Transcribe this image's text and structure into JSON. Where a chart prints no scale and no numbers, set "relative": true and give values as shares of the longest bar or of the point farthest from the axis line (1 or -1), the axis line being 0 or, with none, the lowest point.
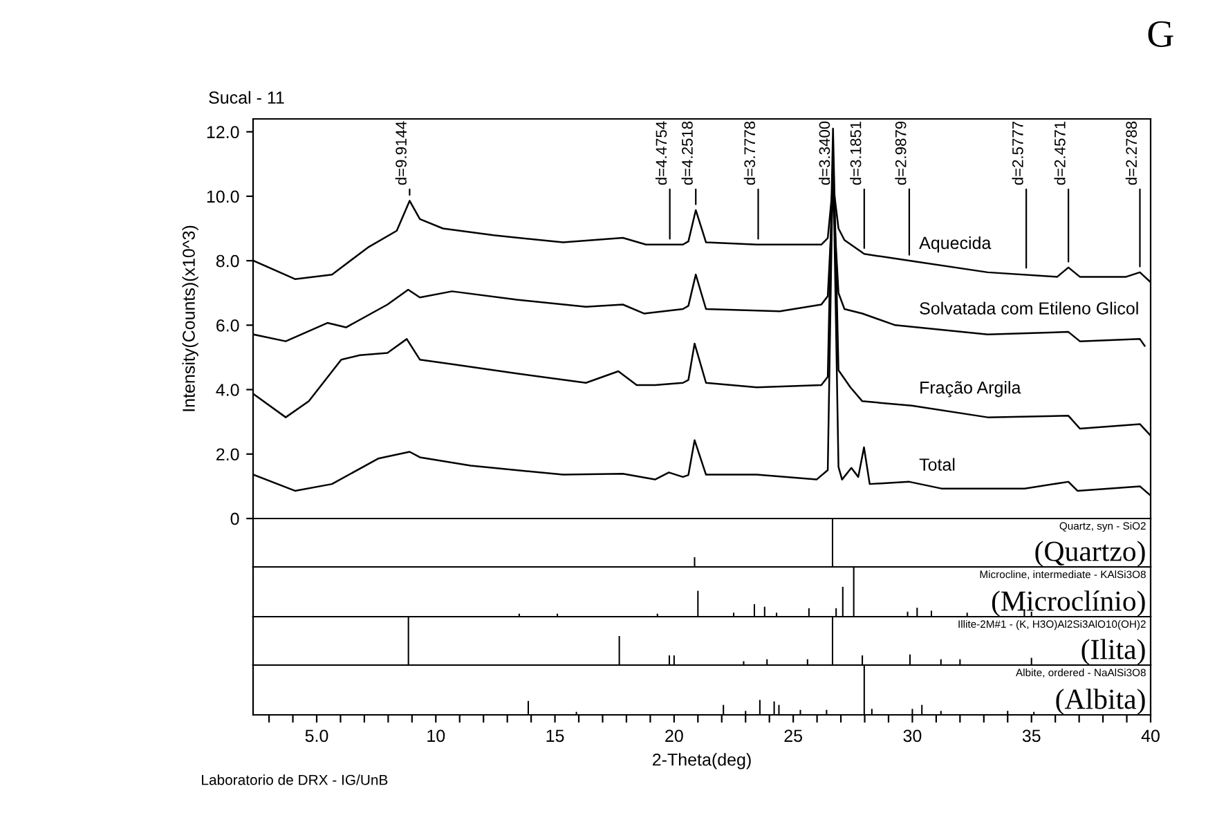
{
  "chart_data": [
    {
      "type": "line",
      "title": "Sucal - 11",
      "ylabel": "Intensity(Counts)(x10^3)",
      "xlim": [
        2.33,
        40.0
      ],
      "ylim": [
        0,
        12.4
      ],
      "yticks": [
        {
          "value": 0,
          "label": "0"
        },
        {
          "value": 2,
          "label": "2.0"
        },
        {
          "value": 4,
          "label": "4.0"
        },
        {
          "value": 6,
          "label": "6.0"
        },
        {
          "value": 8,
          "label": "8.0"
        },
        {
          "value": 10,
          "label": "10.0"
        },
        {
          "value": 12,
          "label": "12.0"
        }
      ],
      "tick_labels": "y",
      "grid": false,
      "legend": false,
      "series": [
        {
          "name": "Aquecida",
          "color": "#000000",
          "x": [
            2.35,
            4.09,
            5.64,
            7.19,
            8.36,
            8.9,
            9.33,
            10.3,
            12.43,
            15.34,
            17.85,
            18.82,
            20.37,
            20.6,
            20.91,
            21.34,
            23.47,
            26.18,
            26.45,
            26.67,
            26.9,
            27.15,
            27.98,
            29.87,
            33.16,
            36.08,
            36.55,
            37.03,
            38.97,
            39.55,
            40.0
          ],
          "values": [
            8.0,
            7.43,
            7.57,
            8.43,
            8.93,
            9.86,
            9.29,
            9.0,
            8.79,
            8.57,
            8.71,
            8.5,
            8.5,
            8.6,
            9.57,
            8.57,
            8.5,
            8.5,
            8.7,
            10.4,
            9.0,
            8.64,
            8.21,
            8.0,
            7.64,
            7.5,
            7.79,
            7.5,
            7.5,
            7.64,
            7.33
          ]
        },
        {
          "name": "Solvatada com Etileno Glicol",
          "color": "#000000",
          "x": [
            2.35,
            3.7,
            5.45,
            6.23,
            7.97,
            8.84,
            9.33,
            10.68,
            13.4,
            16.3,
            17.85,
            18.75,
            20.37,
            20.6,
            20.91,
            21.34,
            24.44,
            26.18,
            26.45,
            26.67,
            26.9,
            27.15,
            27.9,
            29.28,
            33.16,
            36.55,
            37.03,
            39.55,
            39.75
          ],
          "values": [
            5.71,
            5.5,
            6.07,
            5.93,
            6.64,
            7.1,
            6.86,
            7.05,
            6.79,
            6.57,
            6.64,
            6.36,
            6.5,
            6.6,
            7.57,
            6.5,
            6.43,
            6.64,
            6.9,
            10.1,
            7.0,
            6.5,
            6.36,
            6.0,
            5.71,
            5.79,
            5.5,
            5.57,
            5.36
          ]
        },
        {
          "name": "Fração Argila",
          "color": "#000000",
          "x": [
            2.35,
            3.7,
            4.67,
            6.03,
            6.81,
            7.97,
            8.78,
            9.33,
            10.68,
            13.4,
            16.3,
            17.66,
            18.43,
            19.2,
            20.37,
            20.6,
            20.86,
            21.34,
            23.47,
            26.18,
            26.45,
            26.67,
            26.9,
            27.4,
            27.9,
            29.98,
            33.16,
            36.55,
            37.03,
            39.55,
            40.0
          ],
          "values": [
            3.86,
            3.14,
            3.64,
            4.93,
            5.07,
            5.14,
            5.57,
            4.93,
            4.79,
            4.5,
            4.21,
            4.57,
            4.14,
            4.14,
            4.21,
            4.3,
            5.43,
            4.21,
            4.07,
            4.14,
            4.4,
            12.1,
            4.6,
            4.07,
            3.64,
            3.5,
            3.14,
            3.19,
            2.79,
            2.93,
            2.57
          ]
        },
        {
          "name": "Total",
          "color": "#000000",
          "x": [
            2.35,
            4.09,
            5.64,
            7.58,
            8.9,
            9.33,
            11.46,
            15.34,
            17.85,
            19.2,
            19.78,
            20.37,
            20.6,
            20.86,
            21.34,
            23.47,
            25.98,
            26.45,
            26.67,
            26.9,
            27.05,
            27.44,
            27.73,
            27.97,
            28.21,
            29.87,
            31.22,
            34.71,
            36.55,
            36.93,
            39.55,
            40.0
          ],
          "values": [
            1.36,
            0.86,
            1.07,
            1.86,
            2.07,
            1.9,
            1.64,
            1.36,
            1.39,
            1.21,
            1.43,
            1.29,
            1.35,
            2.43,
            1.36,
            1.36,
            1.21,
            1.5,
            11.3,
            1.6,
            1.21,
            1.57,
            1.29,
            2.21,
            1.07,
            1.14,
            0.93,
            0.93,
            1.14,
            0.86,
            1.0,
            0.71
          ]
        }
      ],
      "annotations": [
        {
          "text": "d=9.9144",
          "x": 8.9,
          "y": 9.86
        },
        {
          "text": "d=4.4754",
          "x": 19.82,
          "y": 8.5
        },
        {
          "text": "d=4.2518",
          "x": 20.91,
          "y": 9.57
        },
        {
          "text": "d=3.7778",
          "x": 23.53,
          "y": 8.5
        },
        {
          "text": "d=3.3400",
          "x": 26.67,
          "y": 10.4
        },
        {
          "text": "d=3.1851",
          "x": 27.98,
          "y": 8.21
        },
        {
          "text": "d=2.9879",
          "x": 29.87,
          "y": 8.0
        },
        {
          "text": "d=2.5777",
          "x": 34.78,
          "y": 7.6
        },
        {
          "text": "d=2.4571",
          "x": 36.55,
          "y": 7.79
        },
        {
          "text": "d=2.2788",
          "x": 39.55,
          "y": 7.64
        },
        "G",
        "Laboratorio de DRX - IG/UnB"
      ]
    },
    {
      "type": "bar",
      "title": "Quartz, syn - SiO2",
      "subtitle": "(Quartzo)",
      "relative": true,
      "xlim": [
        2.33,
        40.0
      ],
      "tick_labels": false,
      "color": "#000000",
      "x": [
        20.86,
        26.65
      ],
      "values": [
        0.2,
        1.0
      ]
    },
    {
      "type": "bar",
      "title": "Microcline, intermediate - KAlSi3O8",
      "subtitle": "(Microclínio)",
      "relative": true,
      "xlim": [
        2.33,
        40.0
      ],
      "tick_labels": false,
      "color": "#000000",
      "x": [
        13.5,
        15.1,
        19.3,
        21.0,
        22.5,
        23.37,
        23.8,
        24.3,
        25.66,
        26.8,
        27.08,
        27.54,
        29.8,
        30.2,
        30.8,
        32.3,
        34.7,
        35.0
      ],
      "values": [
        0.06,
        0.06,
        0.06,
        0.52,
        0.08,
        0.25,
        0.2,
        0.08,
        0.17,
        0.17,
        0.6,
        1.0,
        0.1,
        0.18,
        0.12,
        0.08,
        0.15,
        0.1
      ]
    },
    {
      "type": "bar",
      "title": "Illite-2M#1 - (K, H3O)Al2Si3AlO10(OH)2",
      "subtitle": "(Ilita)",
      "relative": true,
      "xlim": [
        2.33,
        40.0
      ],
      "tick_labels": false,
      "color": "#000000",
      "x": [
        8.85,
        17.7,
        19.8,
        20.0,
        22.92,
        23.9,
        25.6,
        26.65,
        27.9,
        29.9,
        31.2,
        32.0,
        35.0
      ],
      "values": [
        1.0,
        0.6,
        0.2,
        0.2,
        0.08,
        0.12,
        0.12,
        1.0,
        0.2,
        0.22,
        0.12,
        0.12,
        0.15
      ]
    },
    {
      "type": "bar",
      "title": "Albite, ordered - NaAlSi3O8",
      "subtitle": "(Albita)",
      "relative": true,
      "xlim": [
        2.33,
        40.0
      ],
      "tick_labels": "x",
      "color": "#000000",
      "xlabel": "2-Theta(deg)",
      "xticks": [
        {
          "value": 3,
          "label": null
        },
        {
          "value": 4,
          "label": null
        },
        {
          "value": 5,
          "label": "5.0"
        },
        {
          "value": 6,
          "label": null
        },
        {
          "value": 7,
          "label": null
        },
        {
          "value": 8,
          "label": null
        },
        {
          "value": 9,
          "label": null
        },
        10,
        {
          "value": 11,
          "label": null
        },
        {
          "value": 12,
          "label": null
        },
        {
          "value": 13,
          "label": null
        },
        {
          "value": 14,
          "label": null
        },
        15,
        {
          "value": 16,
          "label": null
        },
        {
          "value": 17,
          "label": null
        },
        {
          "value": 18,
          "label": null
        },
        {
          "value": 19,
          "label": null
        },
        20,
        {
          "value": 21,
          "label": null
        },
        {
          "value": 22,
          "label": null
        },
        {
          "value": 23,
          "label": null
        },
        {
          "value": 24,
          "label": null
        },
        25,
        {
          "value": 26,
          "label": null
        },
        {
          "value": 27,
          "label": null
        },
        {
          "value": 28,
          "label": null
        },
        {
          "value": 29,
          "label": null
        },
        30,
        {
          "value": 31,
          "label": null
        },
        {
          "value": 32,
          "label": null
        },
        {
          "value": 33,
          "label": null
        },
        {
          "value": 34,
          "label": null
        },
        35,
        {
          "value": 36,
          "label": null
        },
        {
          "value": 37,
          "label": null
        },
        {
          "value": 38,
          "label": null
        },
        {
          "value": 39,
          "label": null
        },
        40
      ],
      "x": [
        13.88,
        15.9,
        22.07,
        23.0,
        23.6,
        24.2,
        24.4,
        25.3,
        26.4,
        27.98,
        28.3,
        30.0,
        30.4,
        31.2,
        34.0,
        35.1
      ],
      "values": [
        0.28,
        0.06,
        0.2,
        0.08,
        0.3,
        0.27,
        0.2,
        0.1,
        0.1,
        1.0,
        0.12,
        0.12,
        0.2,
        0.08,
        0.08,
        0.06
      ]
    }
  ]
}
